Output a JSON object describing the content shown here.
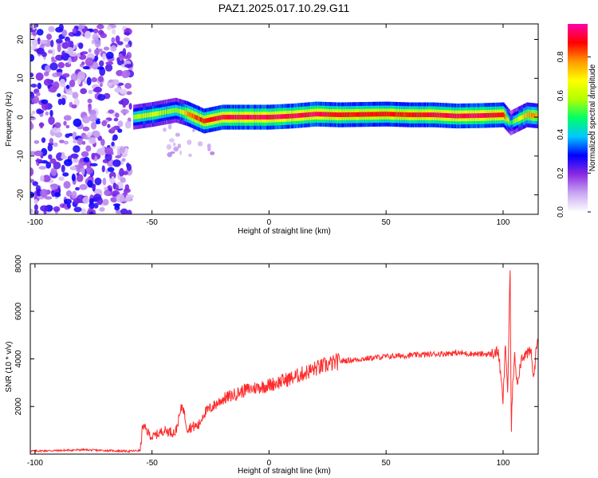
{
  "title": "PAZ1.2025.017.10.29.G11",
  "chart_data": [
    {
      "type": "heatmap",
      "title": "PAZ1.2025.017.10.29.G11",
      "xlabel": "Height of straight line (km)",
      "ylabel": "Frequency (Hz)",
      "xlim": [
        -102,
        115
      ],
      "ylim": [
        -25,
        24
      ],
      "x_ticks": [
        -100,
        -50,
        0,
        50,
        100
      ],
      "y_ticks": [
        -20,
        -10,
        0,
        10,
        20
      ],
      "colorbar": {
        "label": "Normalized spectral amplitude",
        "range": [
          0,
          0.97
        ],
        "ticks": [
          "0.0",
          "0.2",
          "0.4",
          "0.6",
          "0.8"
        ],
        "colors": [
          "#ffffff",
          "#c9a7f2",
          "#8a2be2",
          "#0000ff",
          "#00c8ff",
          "#00ff66",
          "#b4ff00",
          "#ffff00",
          "#ff9900",
          "#ff0000",
          "#ff00aa"
        ]
      },
      "noise_region": {
        "x": [
          -102,
          -59
        ],
        "y": [
          -25,
          24
        ],
        "amplitude": [
          0.05,
          0.3
        ]
      },
      "signal_band": [
        {
          "x": -58,
          "f": 0.0,
          "amp": 0.6
        },
        {
          "x": -50,
          "f": 0.7,
          "amp": 0.65
        },
        {
          "x": -40,
          "f": 1.8,
          "amp": 0.55
        },
        {
          "x": -35,
          "f": 0.9,
          "amp": 0.8
        },
        {
          "x": -28,
          "f": -1.0,
          "amp": 0.9
        },
        {
          "x": -20,
          "f": 0.0,
          "amp": 0.95
        },
        {
          "x": -10,
          "f": 0.0,
          "amp": 0.95
        },
        {
          "x": 0,
          "f": 0.0,
          "amp": 0.95
        },
        {
          "x": 10,
          "f": 0.3,
          "amp": 0.95
        },
        {
          "x": 20,
          "f": 0.8,
          "amp": 0.95
        },
        {
          "x": 30,
          "f": 0.6,
          "amp": 0.9
        },
        {
          "x": 40,
          "f": 0.7,
          "amp": 0.9
        },
        {
          "x": 50,
          "f": 0.8,
          "amp": 0.9
        },
        {
          "x": 60,
          "f": 0.6,
          "amp": 0.9
        },
        {
          "x": 70,
          "f": 0.6,
          "amp": 0.95
        },
        {
          "x": 80,
          "f": 0.3,
          "amp": 0.95
        },
        {
          "x": 90,
          "f": 0.4,
          "amp": 0.95
        },
        {
          "x": 100,
          "f": 0.6,
          "amp": 0.9
        },
        {
          "x": 103,
          "f": -1.5,
          "amp": 0.5
        },
        {
          "x": 110,
          "f": 0.6,
          "amp": 0.8
        },
        {
          "x": 115,
          "f": 0.3,
          "amp": 0.8
        }
      ]
    },
    {
      "type": "line",
      "xlabel": "Height of straight line (km)",
      "ylabel": "SNR (10 * v/v)",
      "xlim": [
        -102,
        115
      ],
      "ylim": [
        0,
        8000
      ],
      "x_ticks": [
        -100,
        -50,
        0,
        50,
        100
      ],
      "y_ticks": [
        2000,
        4000,
        6000,
        8000
      ],
      "color": "#ff2a2a",
      "series": [
        {
          "x": [
            -102,
            -90,
            -80,
            -70,
            -60,
            -55,
            -54,
            -50,
            -45,
            -40,
            -37,
            -35,
            -30,
            -28,
            -20,
            -10,
            0,
            10,
            20,
            30,
            40,
            50,
            60,
            70,
            80,
            90,
            95,
            98,
            100,
            101,
            102,
            103,
            103.5,
            104,
            105,
            106,
            108,
            110,
            112,
            113,
            114,
            115
          ],
          "y": [
            130,
            150,
            180,
            150,
            120,
            150,
            1200,
            700,
            1000,
            900,
            2100,
            1100,
            1200,
            1700,
            2300,
            2700,
            2900,
            3200,
            3600,
            3900,
            4000,
            4100,
            4150,
            4200,
            4250,
            4200,
            4200,
            4300,
            2200,
            4600,
            2600,
            7900,
            800,
            2800,
            4100,
            3000,
            4100,
            4200,
            4300,
            3100,
            4200,
            5100
          ]
        }
      ]
    }
  ]
}
